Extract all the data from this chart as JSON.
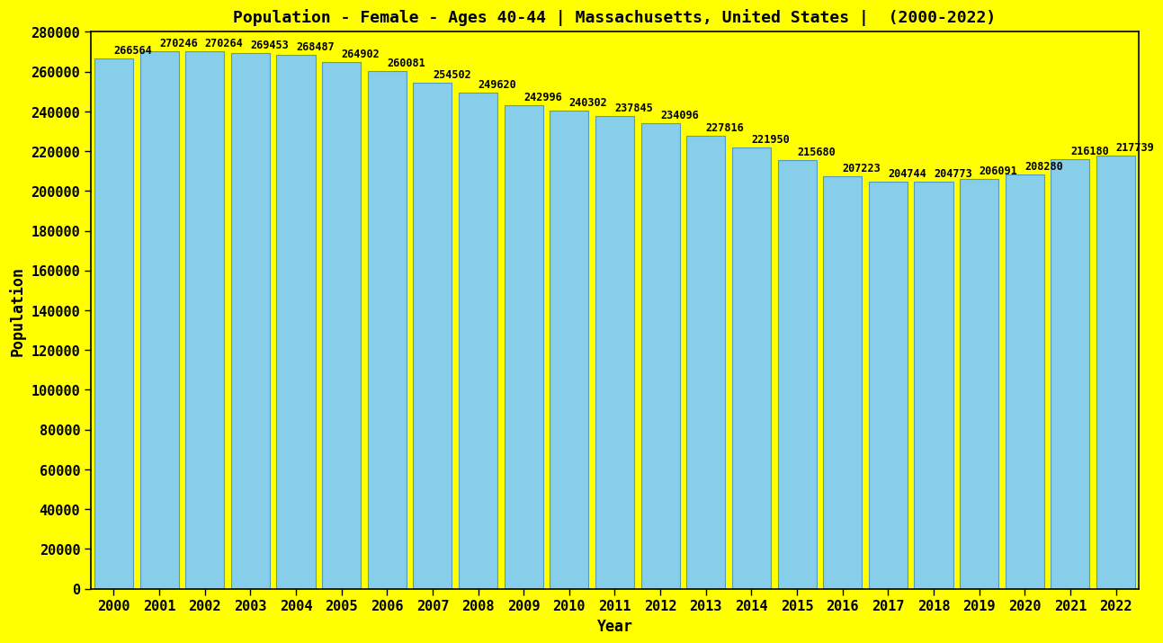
{
  "title": "Population - Female - Ages 40-44 | Massachusetts, United States |  (2000-2022)",
  "xlabel": "Year",
  "ylabel": "Population",
  "background_color": "#ffff00",
  "bar_color": "#87CEEB",
  "bar_edge_color": "#5599bb",
  "years": [
    2000,
    2001,
    2002,
    2003,
    2004,
    2005,
    2006,
    2007,
    2008,
    2009,
    2010,
    2011,
    2012,
    2013,
    2014,
    2015,
    2016,
    2017,
    2018,
    2019,
    2020,
    2021,
    2022
  ],
  "values": [
    266564,
    270246,
    270264,
    269453,
    268487,
    264902,
    260081,
    254502,
    249620,
    242996,
    240302,
    237845,
    234096,
    227816,
    221950,
    215680,
    207223,
    204744,
    204773,
    206091,
    208280,
    216180,
    217739
  ],
  "ylim": [
    0,
    280000
  ],
  "yticks": [
    0,
    20000,
    40000,
    60000,
    80000,
    100000,
    120000,
    140000,
    160000,
    180000,
    200000,
    220000,
    240000,
    260000,
    280000
  ],
  "ytick_labels": [
    "0",
    "20000",
    "40000",
    "60000",
    "80000",
    "100000",
    "120000",
    "140000",
    "160000",
    "180000",
    "200000",
    "220000",
    "240000",
    "260000",
    "280000"
  ],
  "title_fontsize": 13,
  "label_fontsize": 12,
  "tick_fontsize": 11,
  "value_fontsize": 8.5,
  "bar_width": 0.85
}
